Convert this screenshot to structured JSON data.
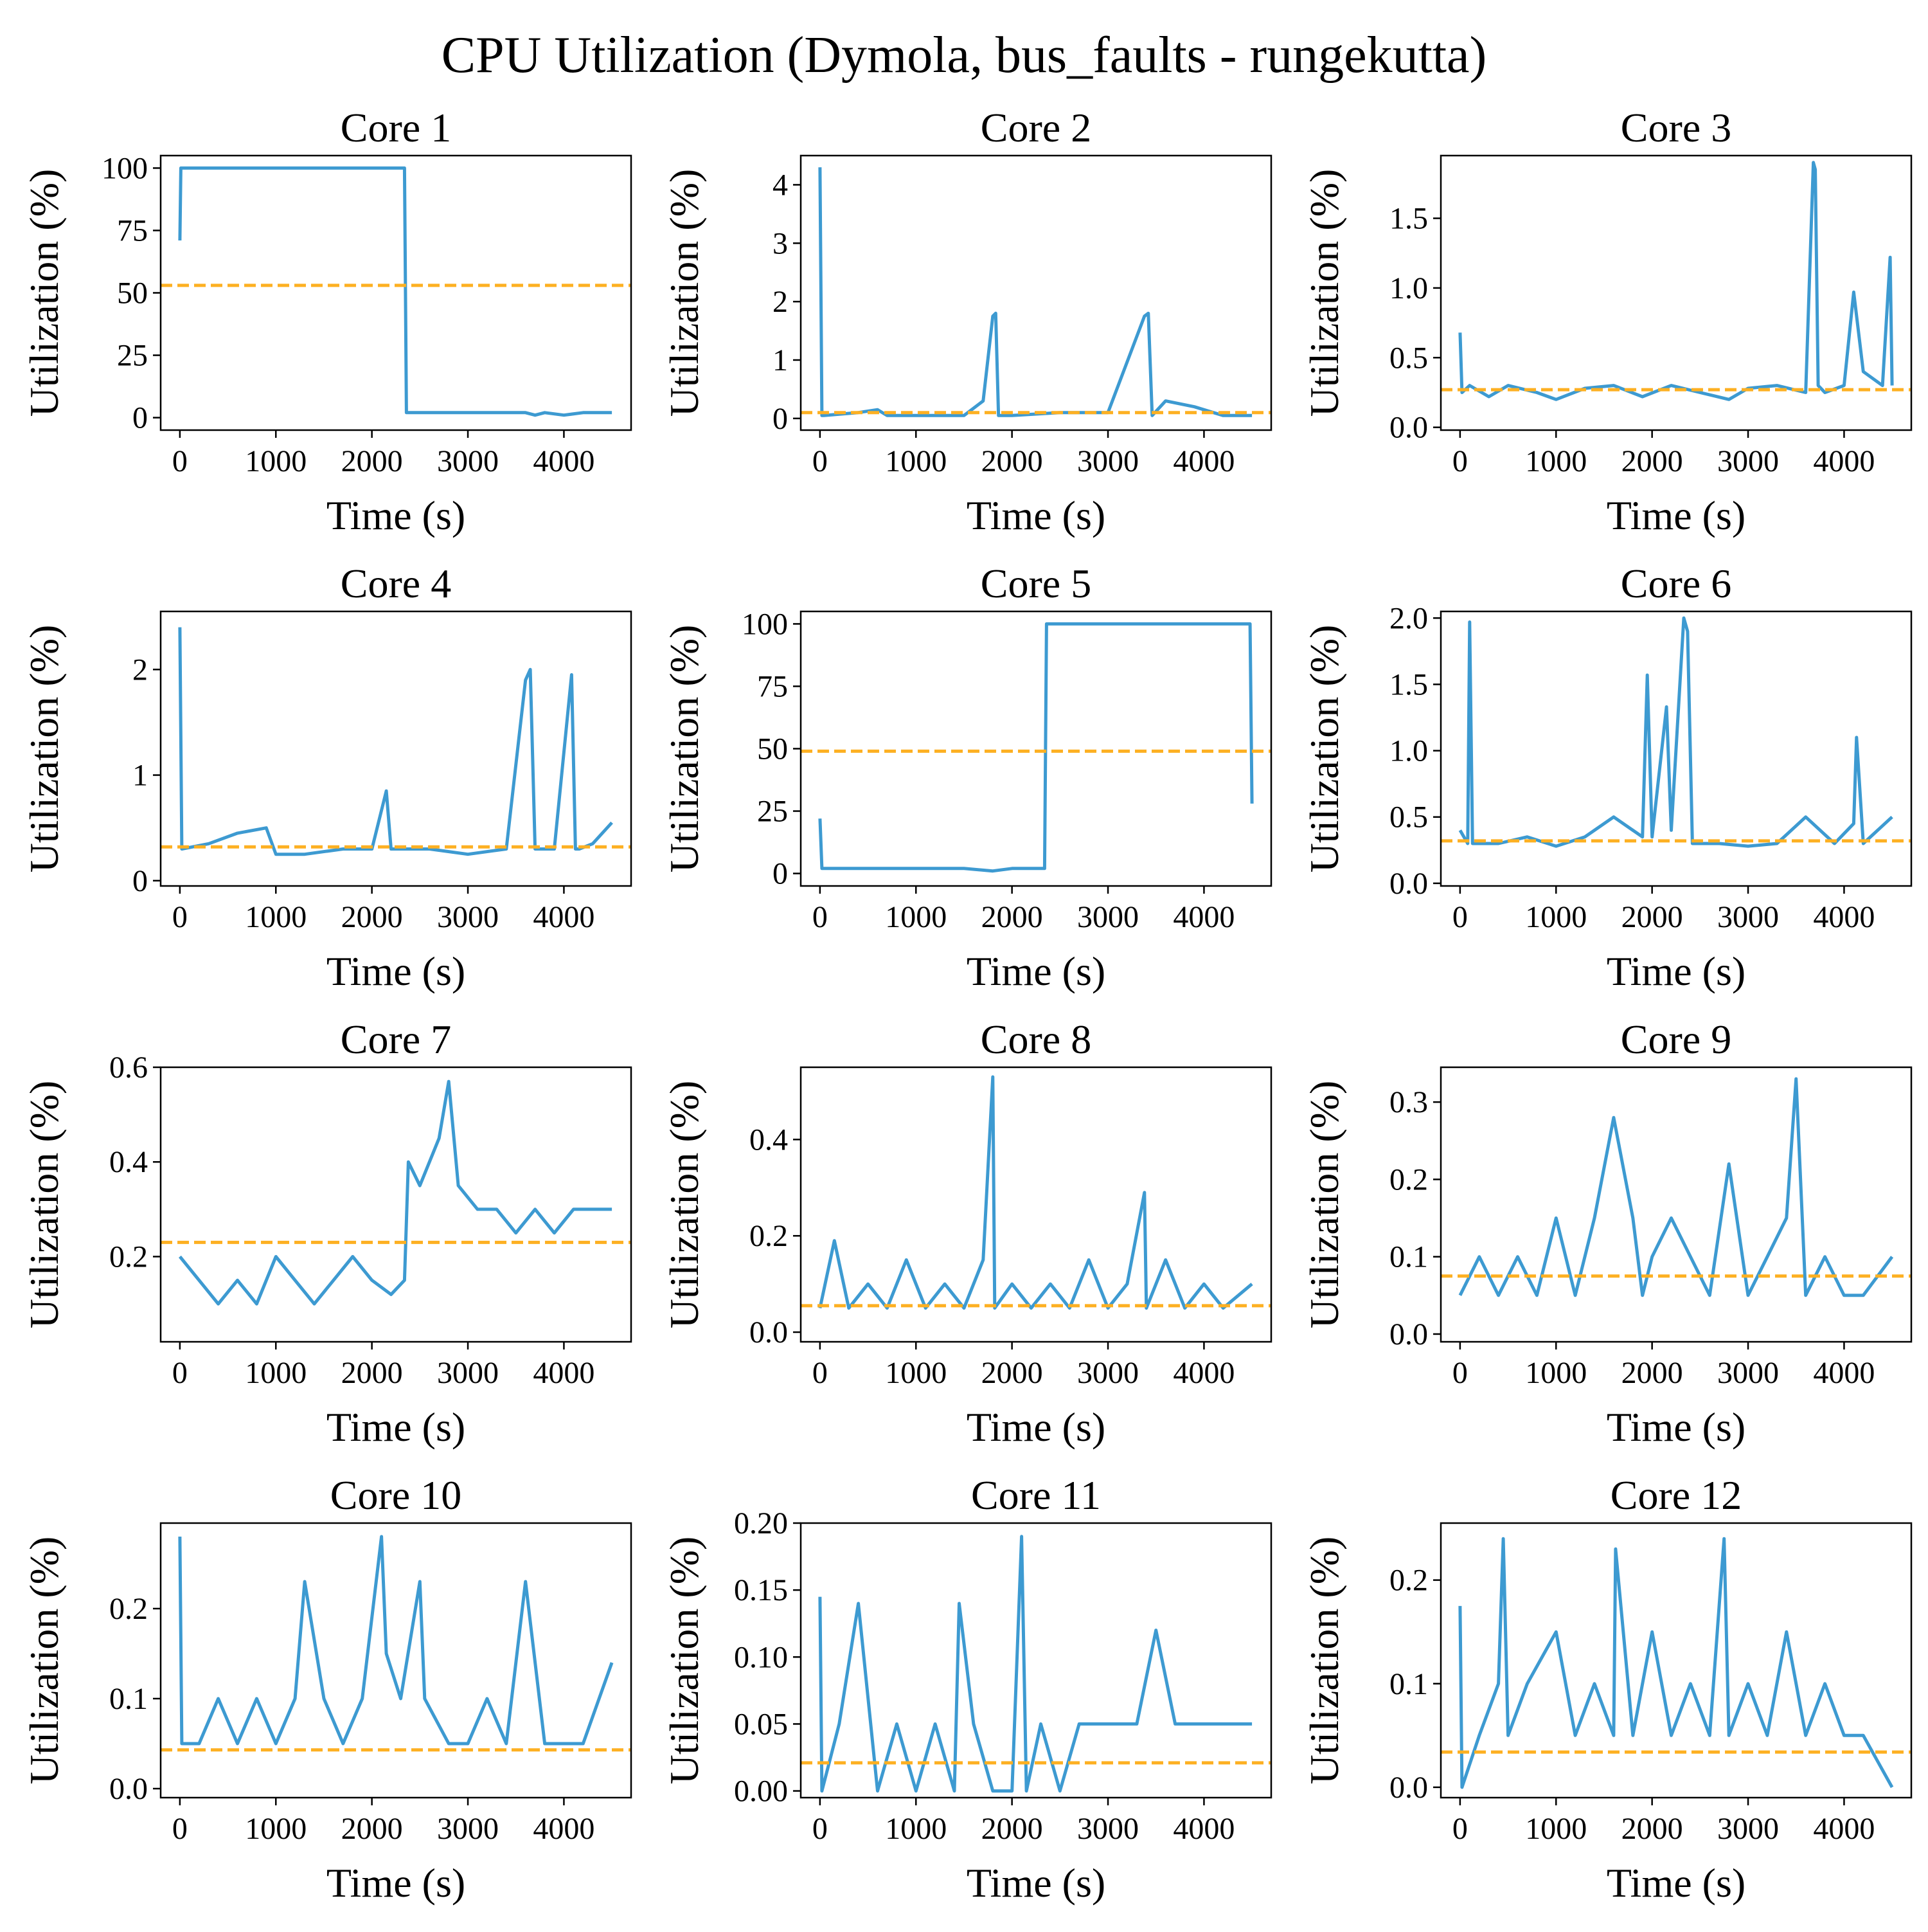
{
  "figure": {
    "title": "CPU Utilization (Dymola, bus_faults - rungekutta)"
  },
  "colors": {
    "series": "#3d9ad1",
    "mean_line": "#fdb022",
    "axes": "#000000"
  },
  "chart_data": [
    {
      "type": "line",
      "title": "Core 1",
      "xlabel": "Time (s)",
      "ylabel": "Utilization (%)",
      "xlim": [
        -200,
        4700
      ],
      "ylim": [
        -5,
        105
      ],
      "xticks": [
        0,
        1000,
        2000,
        3000,
        4000
      ],
      "yticks": [
        0,
        25,
        50,
        75,
        100
      ],
      "ytick_labels": [
        "0",
        "25",
        "50",
        "75",
        "100"
      ],
      "grid": false,
      "mean_line": 53,
      "series": [
        {
          "x": [
            0,
            10,
            20,
            500,
            1000,
            1500,
            2000,
            2340,
            2360,
            2400,
            2800,
            3200,
            3600,
            3700,
            3800,
            4000,
            4200,
            4500
          ],
          "y": [
            71,
            100,
            100,
            100,
            100,
            100,
            100,
            100,
            2,
            2,
            2,
            2,
            2,
            1,
            2,
            1,
            2,
            2
          ]
        }
      ]
    },
    {
      "type": "line",
      "title": "Core 2",
      "xlabel": "Time (s)",
      "ylabel": "Utilization (%)",
      "xlim": [
        -200,
        4700
      ],
      "ylim": [
        -0.2,
        4.5
      ],
      "xticks": [
        0,
        1000,
        2000,
        3000,
        4000
      ],
      "yticks": [
        0,
        1,
        2,
        3,
        4
      ],
      "ytick_labels": [
        "0",
        "1",
        "2",
        "3",
        "4"
      ],
      "grid": false,
      "mean_line": 0.1,
      "series": [
        {
          "x": [
            0,
            20,
            40,
            400,
            600,
            700,
            1000,
            1500,
            1700,
            1800,
            1830,
            1860,
            2000,
            2500,
            3000,
            3380,
            3420,
            3460,
            3600,
            3900,
            4200,
            4500
          ],
          "y": [
            4.3,
            0.05,
            0.05,
            0.1,
            0.15,
            0.05,
            0.05,
            0.05,
            0.3,
            1.75,
            1.8,
            0.05,
            0.05,
            0.1,
            0.1,
            1.75,
            1.8,
            0.05,
            0.3,
            0.2,
            0.05,
            0.05
          ]
        }
      ]
    },
    {
      "type": "line",
      "title": "Core 3",
      "xlabel": "Time (s)",
      "ylabel": "Utilization (%)",
      "xlim": [
        -200,
        4700
      ],
      "ylim": [
        -0.02,
        1.95
      ],
      "xticks": [
        0,
        1000,
        2000,
        3000,
        4000
      ],
      "yticks": [
        0,
        0.5,
        1.0,
        1.5
      ],
      "ytick_labels": [
        "0.0",
        "0.5",
        "1.0",
        "1.5"
      ],
      "grid": false,
      "mean_line": 0.27,
      "series": [
        {
          "x": [
            0,
            20,
            100,
            300,
            500,
            800,
            1000,
            1300,
            1600,
            1900,
            2200,
            2500,
            2800,
            3000,
            3300,
            3600,
            3680,
            3700,
            3730,
            3800,
            4000,
            4100,
            4200,
            4400,
            4480,
            4500
          ],
          "y": [
            0.68,
            0.25,
            0.3,
            0.22,
            0.3,
            0.25,
            0.2,
            0.28,
            0.3,
            0.22,
            0.3,
            0.25,
            0.2,
            0.28,
            0.3,
            0.25,
            1.9,
            1.85,
            0.3,
            0.25,
            0.3,
            0.97,
            0.4,
            0.3,
            1.22,
            0.3
          ]
        }
      ]
    },
    {
      "type": "line",
      "title": "Core 4",
      "xlabel": "Time (s)",
      "ylabel": "Utilization (%)",
      "xlim": [
        -200,
        4700
      ],
      "ylim": [
        -0.05,
        2.55
      ],
      "xticks": [
        0,
        1000,
        2000,
        3000,
        4000
      ],
      "yticks": [
        0,
        1,
        2
      ],
      "ytick_labels": [
        "0",
        "1",
        "2"
      ],
      "grid": false,
      "mean_line": 0.32,
      "series": [
        {
          "x": [
            0,
            20,
            300,
            600,
            900,
            1000,
            1300,
            1700,
            2000,
            2150,
            2200,
            2250,
            2600,
            3000,
            3400,
            3600,
            3650,
            3700,
            3900,
            4080,
            4120,
            4160,
            4300,
            4500
          ],
          "y": [
            2.4,
            0.3,
            0.35,
            0.45,
            0.5,
            0.25,
            0.25,
            0.3,
            0.3,
            0.85,
            0.3,
            0.3,
            0.3,
            0.25,
            0.3,
            1.9,
            2.0,
            0.3,
            0.3,
            1.95,
            0.3,
            0.3,
            0.35,
            0.55
          ]
        }
      ]
    },
    {
      "type": "line",
      "title": "Core 5",
      "xlabel": "Time (s)",
      "ylabel": "Utilization (%)",
      "xlim": [
        -200,
        4700
      ],
      "ylim": [
        -5,
        105
      ],
      "xticks": [
        0,
        1000,
        2000,
        3000,
        4000
      ],
      "yticks": [
        0,
        25,
        50,
        75,
        100
      ],
      "ytick_labels": [
        "0",
        "25",
        "50",
        "75",
        "100"
      ],
      "grid": false,
      "mean_line": 49,
      "series": [
        {
          "x": [
            0,
            20,
            40,
            500,
            1000,
            1500,
            1800,
            2000,
            2340,
            2360,
            2800,
            3200,
            3600,
            4000,
            4480,
            4500
          ],
          "y": [
            22,
            2,
            2,
            2,
            2,
            2,
            1,
            2,
            2,
            100,
            100,
            100,
            100,
            100,
            100,
            28
          ]
        }
      ]
    },
    {
      "type": "line",
      "title": "Core 6",
      "xlabel": "Time (s)",
      "ylabel": "Utilization (%)",
      "xlim": [
        -200,
        4700
      ],
      "ylim": [
        -0.02,
        2.05
      ],
      "xticks": [
        0,
        1000,
        2000,
        3000,
        4000
      ],
      "yticks": [
        0,
        0.5,
        1.0,
        1.5,
        2.0
      ],
      "ytick_labels": [
        "0.0",
        "0.5",
        "1.0",
        "1.5",
        "2.0"
      ],
      "grid": false,
      "mean_line": 0.32,
      "series": [
        {
          "x": [
            0,
            80,
            100,
            130,
            400,
            700,
            1000,
            1300,
            1600,
            1900,
            1950,
            2000,
            2150,
            2200,
            2330,
            2370,
            2420,
            2700,
            3000,
            3300,
            3600,
            3900,
            4100,
            4130,
            4200,
            4500
          ],
          "y": [
            0.4,
            0.3,
            1.97,
            0.3,
            0.3,
            0.35,
            0.28,
            0.35,
            0.5,
            0.35,
            1.57,
            0.35,
            1.33,
            0.4,
            2.0,
            1.9,
            0.3,
            0.3,
            0.28,
            0.3,
            0.5,
            0.3,
            0.45,
            1.1,
            0.3,
            0.5
          ]
        }
      ]
    },
    {
      "type": "line",
      "title": "Core 7",
      "xlabel": "Time (s)",
      "ylabel": "Utilization (%)",
      "xlim": [
        -200,
        4700
      ],
      "ylim": [
        0.02,
        0.6
      ],
      "xticks": [
        0,
        1000,
        2000,
        3000,
        4000
      ],
      "yticks": [
        0.2,
        0.4,
        0.6
      ],
      "ytick_labels": [
        "0.2",
        "0.4",
        "0.6"
      ],
      "grid": false,
      "mean_line": 0.23,
      "series": [
        {
          "x": [
            0,
            200,
            400,
            600,
            800,
            1000,
            1200,
            1400,
            1600,
            1800,
            2000,
            2200,
            2340,
            2380,
            2500,
            2700,
            2800,
            2900,
            3100,
            3300,
            3500,
            3700,
            3900,
            4100,
            4300,
            4500
          ],
          "y": [
            0.2,
            0.15,
            0.1,
            0.15,
            0.1,
            0.2,
            0.15,
            0.1,
            0.15,
            0.2,
            0.15,
            0.12,
            0.15,
            0.4,
            0.35,
            0.45,
            0.57,
            0.35,
            0.3,
            0.3,
            0.25,
            0.3,
            0.25,
            0.3,
            0.3,
            0.3
          ]
        }
      ]
    },
    {
      "type": "line",
      "title": "Core 8",
      "xlabel": "Time (s)",
      "ylabel": "Utilization (%)",
      "xlim": [
        -200,
        4700
      ],
      "ylim": [
        -0.02,
        0.55
      ],
      "xticks": [
        0,
        1000,
        2000,
        3000,
        4000
      ],
      "yticks": [
        0,
        0.2,
        0.4
      ],
      "ytick_labels": [
        "0.0",
        "0.2",
        "0.4"
      ],
      "grid": false,
      "mean_line": 0.055,
      "series": [
        {
          "x": [
            0,
            150,
            300,
            500,
            700,
            900,
            1100,
            1300,
            1500,
            1700,
            1800,
            1820,
            2000,
            2200,
            2400,
            2600,
            2800,
            3000,
            3200,
            3380,
            3400,
            3600,
            3800,
            4000,
            4200,
            4500
          ],
          "y": [
            0.05,
            0.19,
            0.05,
            0.1,
            0.05,
            0.15,
            0.05,
            0.1,
            0.05,
            0.15,
            0.53,
            0.05,
            0.1,
            0.05,
            0.1,
            0.05,
            0.15,
            0.05,
            0.1,
            0.29,
            0.05,
            0.15,
            0.05,
            0.1,
            0.05,
            0.1
          ]
        }
      ]
    },
    {
      "type": "line",
      "title": "Core 9",
      "xlabel": "Time (s)",
      "ylabel": "Utilization (%)",
      "xlim": [
        -200,
        4700
      ],
      "ylim": [
        -0.01,
        0.345
      ],
      "xticks": [
        0,
        1000,
        2000,
        3000,
        4000
      ],
      "yticks": [
        0,
        0.1,
        0.2,
        0.3
      ],
      "ytick_labels": [
        "0.0",
        "0.1",
        "0.2",
        "0.3"
      ],
      "grid": false,
      "mean_line": 0.075,
      "series": [
        {
          "x": [
            0,
            200,
            400,
            600,
            800,
            1000,
            1200,
            1400,
            1600,
            1800,
            1900,
            2000,
            2200,
            2400,
            2600,
            2800,
            3000,
            3200,
            3400,
            3500,
            3600,
            3800,
            4000,
            4200,
            4500
          ],
          "y": [
            0.05,
            0.1,
            0.05,
            0.1,
            0.05,
            0.15,
            0.05,
            0.15,
            0.28,
            0.15,
            0.05,
            0.1,
            0.15,
            0.1,
            0.05,
            0.22,
            0.05,
            0.1,
            0.15,
            0.33,
            0.05,
            0.1,
            0.05,
            0.05,
            0.1
          ]
        }
      ]
    },
    {
      "type": "line",
      "title": "Core 10",
      "xlabel": "Time (s)",
      "ylabel": "Utilization (%)",
      "xlim": [
        -200,
        4700
      ],
      "ylim": [
        -0.01,
        0.295
      ],
      "xticks": [
        0,
        1000,
        2000,
        3000,
        4000
      ],
      "yticks": [
        0,
        0.1,
        0.2
      ],
      "ytick_labels": [
        "0.0",
        "0.1",
        "0.2"
      ],
      "grid": false,
      "mean_line": 0.043,
      "series": [
        {
          "x": [
            0,
            20,
            200,
            400,
            600,
            800,
            1000,
            1200,
            1300,
            1500,
            1700,
            1900,
            2100,
            2150,
            2300,
            2500,
            2550,
            2800,
            3000,
            3200,
            3400,
            3600,
            3800,
            4000,
            4200,
            4500
          ],
          "y": [
            0.28,
            0.05,
            0.05,
            0.1,
            0.05,
            0.1,
            0.05,
            0.1,
            0.23,
            0.1,
            0.05,
            0.1,
            0.28,
            0.15,
            0.1,
            0.23,
            0.1,
            0.05,
            0.05,
            0.1,
            0.05,
            0.23,
            0.05,
            0.05,
            0.05,
            0.14
          ]
        }
      ]
    },
    {
      "type": "line",
      "title": "Core 11",
      "xlabel": "Time (s)",
      "ylabel": "Utilization (%)",
      "xlim": [
        -200,
        4700
      ],
      "ylim": [
        -0.005,
        0.2
      ],
      "xticks": [
        0,
        1000,
        2000,
        3000,
        4000
      ],
      "yticks": [
        0,
        0.05,
        0.1,
        0.15,
        0.2
      ],
      "ytick_labels": [
        "0.00",
        "0.05",
        "0.10",
        "0.15",
        "0.20"
      ],
      "grid": false,
      "mean_line": 0.021,
      "series": [
        {
          "x": [
            0,
            20,
            200,
            400,
            600,
            800,
            1000,
            1200,
            1400,
            1450,
            1600,
            1800,
            2000,
            2100,
            2150,
            2300,
            2500,
            2700,
            2900,
            3100,
            3300,
            3500,
            3700,
            3900,
            4100,
            4300,
            4500
          ],
          "y": [
            0.145,
            0.0,
            0.05,
            0.14,
            0.0,
            0.05,
            0.0,
            0.05,
            0.0,
            0.14,
            0.05,
            0.0,
            0.0,
            0.19,
            0.0,
            0.05,
            0.0,
            0.05,
            0.05,
            0.05,
            0.05,
            0.12,
            0.05,
            0.05,
            0.05,
            0.05,
            0.05
          ]
        }
      ]
    },
    {
      "type": "line",
      "title": "Core 12",
      "xlabel": "Time (s)",
      "ylabel": "Utilization (%)",
      "xlim": [
        -200,
        4700
      ],
      "ylim": [
        -0.01,
        0.255
      ],
      "xticks": [
        0,
        1000,
        2000,
        3000,
        4000
      ],
      "yticks": [
        0,
        0.1,
        0.2
      ],
      "ytick_labels": [
        "0.0",
        "0.1",
        "0.2"
      ],
      "grid": false,
      "mean_line": 0.034,
      "series": [
        {
          "x": [
            0,
            20,
            200,
            400,
            450,
            500,
            700,
            1000,
            1200,
            1400,
            1600,
            1620,
            1800,
            2000,
            2200,
            2400,
            2600,
            2750,
            2800,
            3000,
            3200,
            3400,
            3600,
            3800,
            4000,
            4200,
            4500
          ],
          "y": [
            0.175,
            0.0,
            0.05,
            0.1,
            0.24,
            0.05,
            0.1,
            0.15,
            0.05,
            0.1,
            0.05,
            0.23,
            0.05,
            0.15,
            0.05,
            0.1,
            0.05,
            0.24,
            0.05,
            0.1,
            0.05,
            0.15,
            0.05,
            0.1,
            0.05,
            0.05,
            0.0
          ]
        }
      ]
    }
  ]
}
